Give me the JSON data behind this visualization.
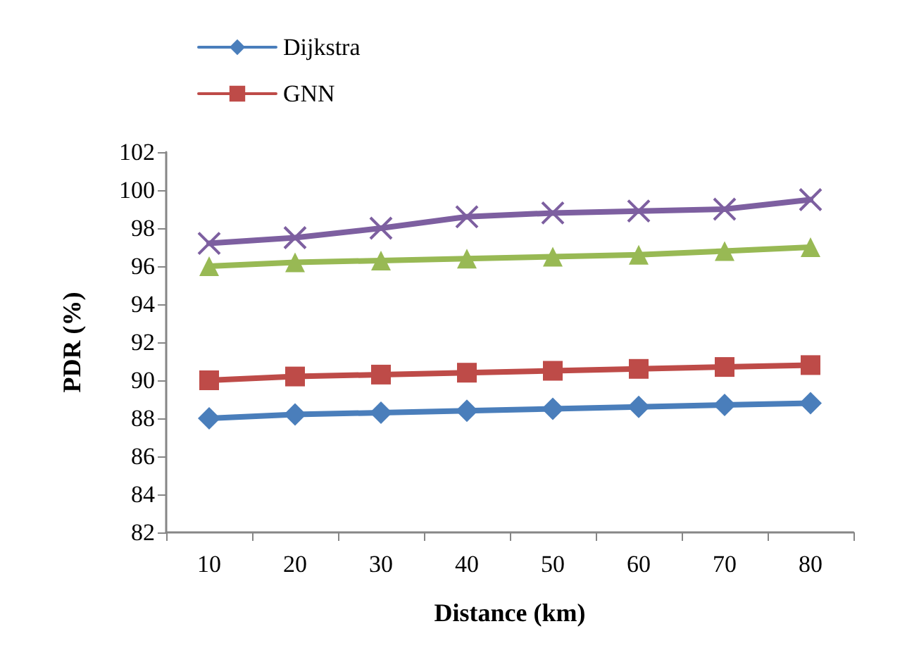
{
  "chart_data": {
    "type": "line",
    "xlabel": "Distance (km)",
    "ylabel": "PDR (%)",
    "categories": [
      "10",
      "20",
      "30",
      "40",
      "50",
      "60",
      "70",
      "80"
    ],
    "series": [
      {
        "name": "Dijkstra",
        "color": "#4a7ebb",
        "marker": "diamond",
        "values": [
          88.0,
          88.2,
          88.3,
          88.4,
          88.5,
          88.6,
          88.7,
          88.8
        ]
      },
      {
        "name": "GNN",
        "color": "#be4b48",
        "marker": "square",
        "values": [
          90.0,
          90.2,
          90.3,
          90.4,
          90.5,
          90.6,
          90.7,
          90.8
        ]
      },
      {
        "color": "#98b954",
        "marker": "triangle",
        "values": [
          96.0,
          96.2,
          96.3,
          96.4,
          96.5,
          96.6,
          96.8,
          97.0
        ]
      },
      {
        "color": "#7d5fa0",
        "marker": "cross",
        "values": [
          97.2,
          97.5,
          98.0,
          98.6,
          98.8,
          98.9,
          99.0,
          99.5
        ]
      }
    ],
    "ylim": [
      82,
      102
    ],
    "yticks": [
      82,
      84,
      86,
      88,
      90,
      92,
      94,
      96,
      98,
      100,
      102
    ],
    "grid": false,
    "legend": "top left"
  }
}
